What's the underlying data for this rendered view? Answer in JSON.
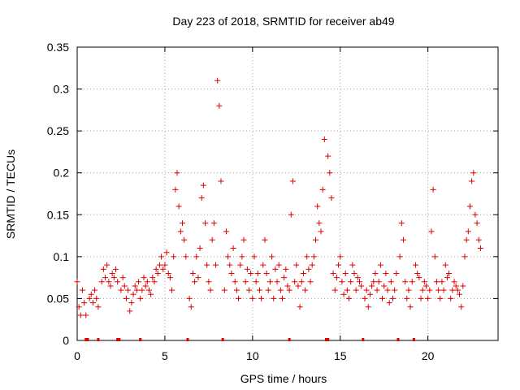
{
  "chart_data": {
    "type": "scatter",
    "title": "Day 223 of 2018, SRMTID for receiver ab49",
    "xlabel": "GPS time / hours",
    "ylabel": "SRMTID / TECUs",
    "xlim": [
      0,
      24
    ],
    "ylim": [
      0,
      0.35
    ],
    "xticks": [
      0,
      5,
      10,
      15,
      20
    ],
    "xtick_labels": [
      "0",
      "5",
      "10",
      "15",
      "20"
    ],
    "yticks": [
      0,
      0.05,
      0.1,
      0.15,
      0.2,
      0.25,
      0.3,
      0.35
    ],
    "ytick_labels": [
      "0",
      "0.05",
      "0.1",
      "0.15",
      "0.2",
      "0.25",
      "0.3",
      "0.35"
    ],
    "grid": true,
    "marker": "+",
    "series": [
      {
        "name": "SRMTID",
        "color": "#e00000",
        "x": [
          0.0,
          0.1,
          0.2,
          0.3,
          0.4,
          0.5,
          0.7,
          0.8,
          0.9,
          1.0,
          1.1,
          1.2,
          1.4,
          1.5,
          1.6,
          1.7,
          1.8,
          1.9,
          2.0,
          2.1,
          2.2,
          2.3,
          2.5,
          2.6,
          2.7,
          2.8,
          2.9,
          3.0,
          3.1,
          3.2,
          3.3,
          3.4,
          3.5,
          3.6,
          3.7,
          3.8,
          3.9,
          4.0,
          4.1,
          4.2,
          4.3,
          4.4,
          4.5,
          4.6,
          4.7,
          4.8,
          4.9,
          5.0,
          5.1,
          5.2,
          5.3,
          5.4,
          5.5,
          5.6,
          5.7,
          5.8,
          5.9,
          6.0,
          6.1,
          6.2,
          6.4,
          6.5,
          6.6,
          6.7,
          6.8,
          6.9,
          7.0,
          7.1,
          7.2,
          7.3,
          7.4,
          7.5,
          7.6,
          7.7,
          7.8,
          7.9,
          8.0,
          8.1,
          8.2,
          8.4,
          8.5,
          8.6,
          8.7,
          8.8,
          8.9,
          9.0,
          9.1,
          9.2,
          9.3,
          9.4,
          9.5,
          9.6,
          9.7,
          9.8,
          9.9,
          10.0,
          10.1,
          10.2,
          10.3,
          10.4,
          10.5,
          10.6,
          10.7,
          10.8,
          10.9,
          11.0,
          11.1,
          11.2,
          11.3,
          11.4,
          11.5,
          11.6,
          11.7,
          11.8,
          11.9,
          12.0,
          12.1,
          12.2,
          12.3,
          12.4,
          12.5,
          12.6,
          12.7,
          12.8,
          12.9,
          13.0,
          13.1,
          13.2,
          13.3,
          13.4,
          13.5,
          13.6,
          13.7,
          13.8,
          13.9,
          14.0,
          14.1,
          14.3,
          14.4,
          14.5,
          14.6,
          14.7,
          14.8,
          14.9,
          15.0,
          15.1,
          15.2,
          15.3,
          15.4,
          15.5,
          15.6,
          15.7,
          15.8,
          15.9,
          16.0,
          16.1,
          16.2,
          16.4,
          16.5,
          16.6,
          16.7,
          16.8,
          16.9,
          17.0,
          17.1,
          17.2,
          17.3,
          17.4,
          17.5,
          17.6,
          17.7,
          17.8,
          17.9,
          18.0,
          18.1,
          18.2,
          18.4,
          18.5,
          18.6,
          18.7,
          18.8,
          18.9,
          19.0,
          19.1,
          19.3,
          19.4,
          19.5,
          19.6,
          19.7,
          19.8,
          19.9,
          20.0,
          20.1,
          20.2,
          20.3,
          20.4,
          20.5,
          20.6,
          20.7,
          20.8,
          20.9,
          21.0,
          21.1,
          21.2,
          21.3,
          21.4,
          21.5,
          21.6,
          21.7,
          21.8,
          21.9,
          22.0,
          22.1,
          22.2,
          22.3,
          22.4,
          22.5,
          22.6,
          22.7,
          22.8,
          22.9,
          23.0
        ],
        "y": [
          0.07,
          0.04,
          0.03,
          0.06,
          0.045,
          0.03,
          0.05,
          0.055,
          0.045,
          0.06,
          0.05,
          0.04,
          0.07,
          0.085,
          0.075,
          0.09,
          0.07,
          0.065,
          0.08,
          0.075,
          0.085,
          0.07,
          0.06,
          0.075,
          0.065,
          0.05,
          0.06,
          0.035,
          0.045,
          0.055,
          0.065,
          0.06,
          0.07,
          0.05,
          0.06,
          0.075,
          0.065,
          0.07,
          0.06,
          0.055,
          0.075,
          0.07,
          0.085,
          0.08,
          0.09,
          0.1,
          0.085,
          0.09,
          0.105,
          0.08,
          0.075,
          0.06,
          0.1,
          0.18,
          0.2,
          0.16,
          0.13,
          0.14,
          0.12,
          0.1,
          0.05,
          0.04,
          0.08,
          0.07,
          0.1,
          0.075,
          0.11,
          0.17,
          0.185,
          0.14,
          0.09,
          0.07,
          0.06,
          0.12,
          0.14,
          0.09,
          0.31,
          0.28,
          0.19,
          0.06,
          0.13,
          0.1,
          0.09,
          0.08,
          0.11,
          0.07,
          0.06,
          0.05,
          0.09,
          0.1,
          0.12,
          0.07,
          0.085,
          0.06,
          0.08,
          0.05,
          0.1,
          0.07,
          0.08,
          0.06,
          0.05,
          0.09,
          0.12,
          0.08,
          0.06,
          0.07,
          0.1,
          0.05,
          0.085,
          0.07,
          0.09,
          0.06,
          0.05,
          0.075,
          0.085,
          0.065,
          0.06,
          0.15,
          0.19,
          0.07,
          0.09,
          0.065,
          0.04,
          0.07,
          0.08,
          0.06,
          0.1,
          0.085,
          0.07,
          0.09,
          0.1,
          0.12,
          0.16,
          0.14,
          0.13,
          0.18,
          0.24,
          0.22,
          0.2,
          0.17,
          0.08,
          0.06,
          0.075,
          0.09,
          0.1,
          0.07,
          0.055,
          0.08,
          0.06,
          0.05,
          0.07,
          0.09,
          0.08,
          0.06,
          0.075,
          0.07,
          0.065,
          0.05,
          0.06,
          0.04,
          0.055,
          0.065,
          0.07,
          0.08,
          0.06,
          0.07,
          0.09,
          0.05,
          0.065,
          0.08,
          0.06,
          0.045,
          0.07,
          0.05,
          0.06,
          0.08,
          0.1,
          0.14,
          0.12,
          0.07,
          0.05,
          0.06,
          0.04,
          0.07,
          0.09,
          0.08,
          0.075,
          0.05,
          0.06,
          0.07,
          0.065,
          0.05,
          0.06,
          0.13,
          0.18,
          0.1,
          0.07,
          0.06,
          0.05,
          0.07,
          0.06,
          0.09,
          0.075,
          0.08,
          0.05,
          0.06,
          0.07,
          0.065,
          0.06,
          0.055,
          0.04,
          0.065,
          0.1,
          0.12,
          0.13,
          0.16,
          0.19,
          0.2,
          0.15,
          0.14,
          0.12,
          0.11
        ]
      }
    ],
    "gap_markers_x": [
      0.5,
      0.6,
      1.2,
      2.3,
      2.4,
      3.6,
      6.3,
      8.3,
      12.1,
      14.2,
      14.3,
      16.3,
      18.3,
      19.2
    ]
  }
}
